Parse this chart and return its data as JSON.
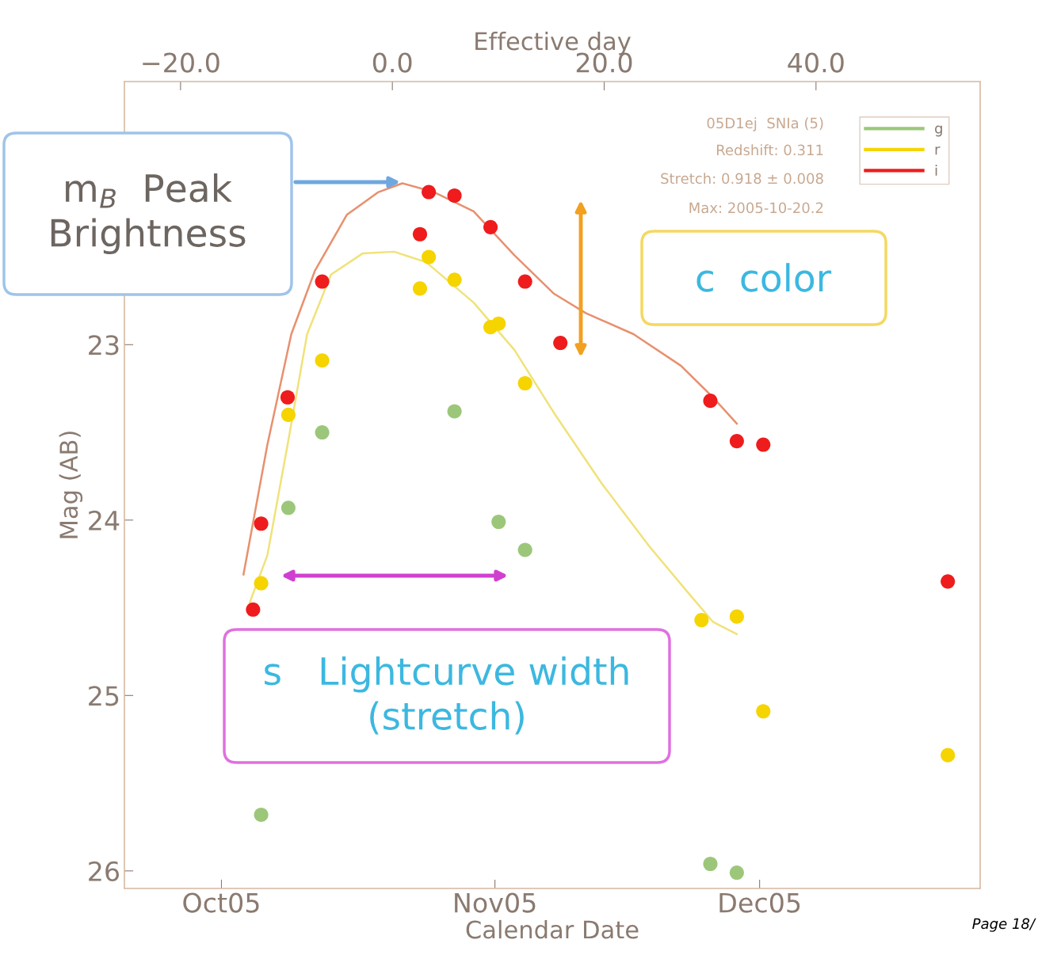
{
  "chart_data": {
    "type": "scatter",
    "xlabel": "Calendar Date",
    "ylabel": "Mag (AB)",
    "x2label": "Effective day",
    "xlim": [
      "2005-09-20",
      "2005-12-26"
    ],
    "xticks": [
      {
        "value": "2005-10-01",
        "label": "Oct05"
      },
      {
        "value": "2005-11-01",
        "label": "Nov05"
      },
      {
        "value": "2005-12-01",
        "label": "Dec05"
      }
    ],
    "x2lim": [
      -25.3,
      55.5
    ],
    "x2ticks": [
      {
        "value": -20,
        "label": "−20.0"
      },
      {
        "value": 0,
        "label": "0.0"
      },
      {
        "value": 20,
        "label": "20.0"
      },
      {
        "value": 40,
        "label": "40.0"
      }
    ],
    "ylim": [
      26.1,
      21.5
    ],
    "yticks": [
      23,
      24,
      25,
      26
    ],
    "grid": false,
    "legend": "top right",
    "marker": "circle",
    "series": [
      {
        "name": "g",
        "color": "#9cc77a",
        "x": [
          "2005-10-05T12:00",
          "2005-10-08T14:00",
          "2005-10-12T10:00",
          "2005-10-27T10:00",
          "2005-11-01T10:00",
          "2005-11-04T10:00",
          "2005-11-25T10:00",
          "2005-11-28T10:00"
        ],
        "values": [
          25.68,
          23.93,
          23.5,
          23.38,
          24.01,
          24.17,
          25.96,
          26.01
        ]
      },
      {
        "name": "r",
        "color": "#f5d400",
        "x": [
          "2005-10-05T12:00",
          "2005-10-08T14:00",
          "2005-10-12T10:00",
          "2005-10-23T12:00",
          "2005-10-24T12:00",
          "2005-10-27T10:00",
          "2005-10-31T12:00",
          "2005-11-01T10:00",
          "2005-11-04T10:00",
          "2005-11-24T10:00",
          "2005-11-28T10:00",
          "2005-12-01T10:00",
          "2005-12-22T08:00"
        ],
        "values": [
          24.36,
          23.4,
          23.09,
          22.68,
          22.5,
          22.63,
          22.9,
          22.88,
          23.22,
          24.57,
          24.55,
          25.09,
          25.34
        ]
      },
      {
        "name": "i",
        "color": "#ee1c1c",
        "x": [
          "2005-10-04T14:00",
          "2005-10-05T12:00",
          "2005-10-08T12:00",
          "2005-10-12T10:00",
          "2005-10-23T12:00",
          "2005-10-24T12:00",
          "2005-10-27T10:00",
          "2005-10-31T12:00",
          "2005-11-04T10:00",
          "2005-11-08T10:00",
          "2005-11-25T10:00",
          "2005-11-28T10:00",
          "2005-12-01T10:00",
          "2005-12-22T08:00"
        ],
        "values": [
          24.51,
          24.02,
          23.3,
          22.64,
          22.37,
          22.13,
          22.15,
          22.33,
          22.64,
          22.99,
          23.32,
          23.55,
          23.57,
          24.35
        ]
      },
      {
        "type": "line",
        "marker": "none",
        "color": "#f0e27a",
        "x": [
          "2005-10-04T05:00",
          "2005-10-06T05:00",
          "2005-10-08T12:00",
          "2005-10-10T17:00",
          "2005-10-13T10:00",
          "2005-10-17T00:00",
          "2005-10-20T14:00",
          "2005-10-24T05:00",
          "2005-10-29T14:00",
          "2005-11-03T05:00",
          "2005-11-07T17:00",
          "2005-11-13T02:00",
          "2005-11-18T12:00",
          "2005-11-23T00:00",
          "2005-11-25T17:00",
          "2005-11-28T10:00"
        ],
        "values": [
          24.47,
          24.2,
          23.57,
          22.94,
          22.6,
          22.48,
          22.47,
          22.53,
          22.76,
          23.03,
          23.39,
          23.79,
          24.15,
          24.42,
          24.58,
          24.65
        ]
      },
      {
        "type": "line",
        "marker": "none",
        "color": "#e8906e",
        "x": [
          "2005-10-03T12:00",
          "2005-10-06T05:00",
          "2005-10-08T22:00",
          "2005-10-11T14:00",
          "2005-10-15T05:00",
          "2005-10-18T19:00",
          "2005-10-21T12:00",
          "2005-10-25T02:00",
          "2005-10-29T14:00",
          "2005-11-03T05:00",
          "2005-11-07T17:00",
          "2005-11-11T07:00",
          "2005-11-16T17:00",
          "2005-11-22T02:00",
          "2005-11-25T17:00",
          "2005-11-28T10:00"
        ],
        "values": [
          24.31,
          23.57,
          22.94,
          22.58,
          22.26,
          22.13,
          22.08,
          22.13,
          22.24,
          22.49,
          22.71,
          22.82,
          22.94,
          23.12,
          23.3,
          23.45
        ]
      }
    ],
    "annotations": [
      "05D1ej  SNIa (5)",
      "Redshift: 0.311",
      "Stretch: 0.918 ± 0.008",
      "Max: 2005-10-20.2",
      "m$_{B}$  Peak\nBrightness",
      "c  color",
      "s   Lightcurve width\n(stretch)",
      "Page 18/"
    ]
  }
}
